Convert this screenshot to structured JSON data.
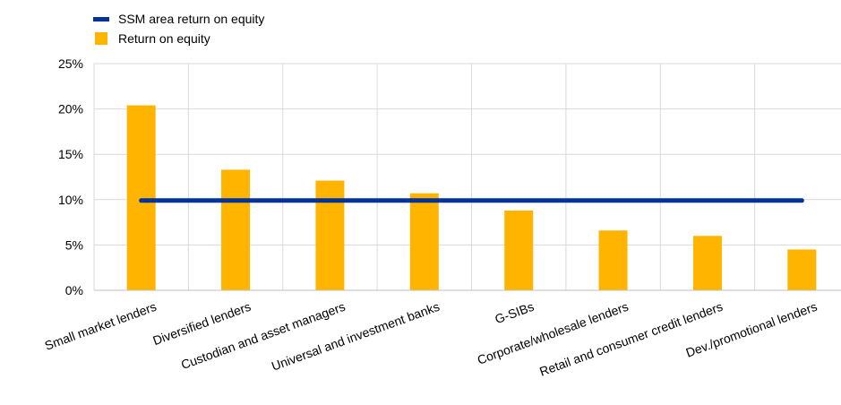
{
  "chart_data": {
    "type": "bar",
    "categories": [
      "Small market lenders",
      "Diversified lenders",
      "Custodian and asset managers",
      "Universal and investment banks",
      "G-SIBs",
      "Corporate/wholesale lenders",
      "Retail and consumer credit lenders",
      "Dev./promotional lenders"
    ],
    "series": [
      {
        "name": "Return on equity",
        "kind": "bar",
        "color": "#FFB400",
        "values": [
          20.4,
          13.3,
          12.1,
          10.7,
          8.8,
          6.6,
          6.0,
          4.5
        ]
      },
      {
        "name": "SSM area return on equity",
        "kind": "line",
        "color": "#003299",
        "values": [
          9.9,
          9.9,
          9.9,
          9.9,
          9.9,
          9.9,
          9.9,
          9.9
        ]
      }
    ],
    "ylim": [
      0,
      25
    ],
    "yticks": [
      "0%",
      "5%",
      "10%",
      "15%",
      "20%",
      "25%"
    ],
    "grid": true,
    "legend_position": "top-left"
  }
}
